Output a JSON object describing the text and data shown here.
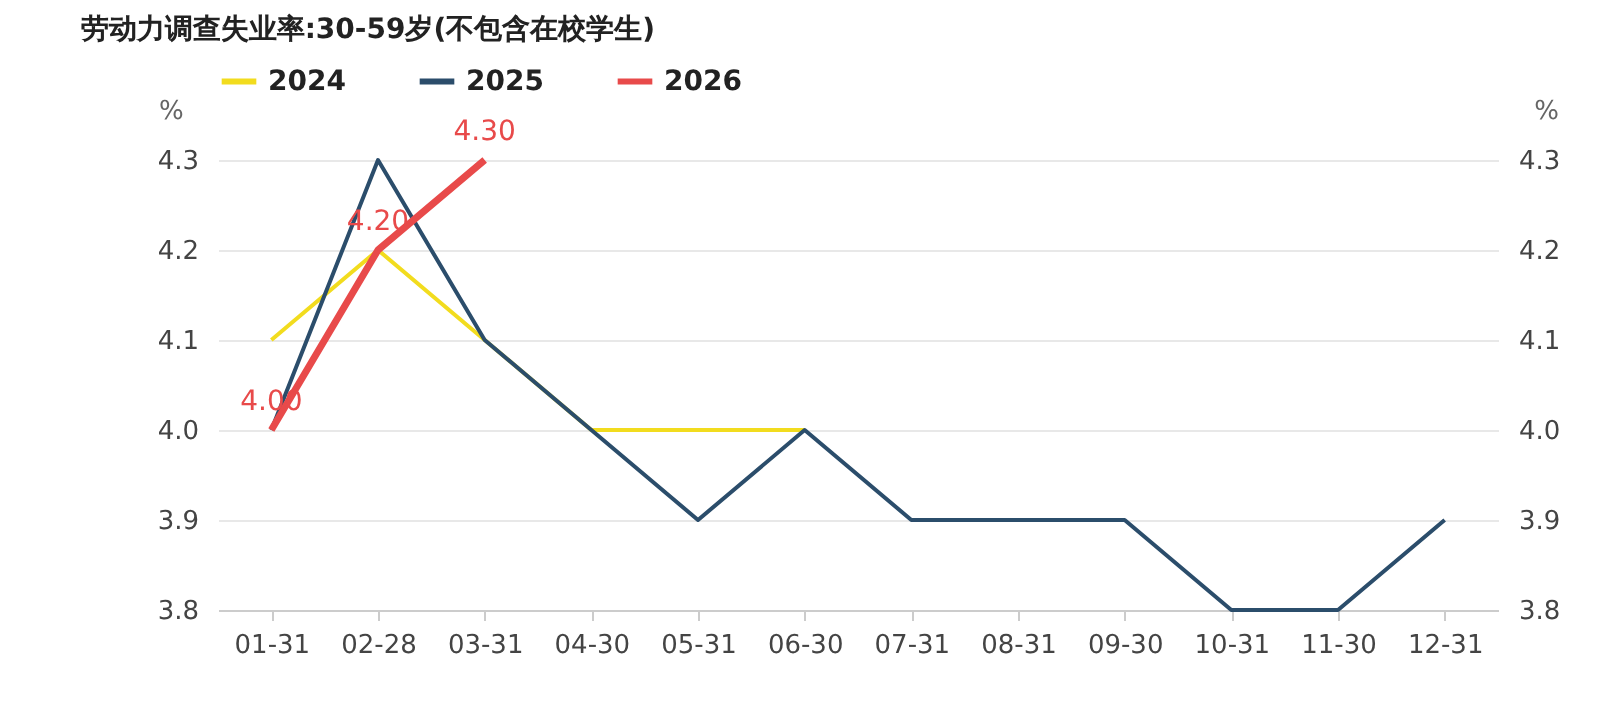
{
  "chart_data": {
    "type": "line",
    "title": "劳动力调查失业率:30-59岁(不包含在校学生)",
    "categories": [
      "01-31",
      "02-28",
      "03-31",
      "04-30",
      "05-31",
      "06-30",
      "07-31",
      "08-31",
      "09-30",
      "10-31",
      "11-30",
      "12-31"
    ],
    "series": [
      {
        "name": "2024",
        "color": "#f2dc1e",
        "values": [
          4.1,
          4.2,
          4.1,
          4.0,
          4.0,
          4.0,
          null,
          null,
          null,
          null,
          null,
          null
        ]
      },
      {
        "name": "2025",
        "color": "#2b4d6b",
        "values": [
          4.0,
          4.3,
          4.1,
          4.0,
          3.9,
          4.0,
          3.9,
          3.9,
          3.9,
          3.8,
          3.8,
          3.9
        ]
      },
      {
        "name": "2026",
        "color": "#e84a4a",
        "values": [
          4.0,
          4.2,
          4.3,
          null,
          null,
          null,
          null,
          null,
          null,
          null,
          null,
          null
        ],
        "value_labels": [
          "4.00",
          "4.20",
          "4.30",
          null,
          null,
          null,
          null,
          null,
          null,
          null,
          null,
          null
        ]
      }
    ],
    "ylabel": "%",
    "y2label": "%",
    "ylim": [
      3.8,
      4.3
    ],
    "yticks": [
      3.8,
      3.9,
      {
        "value": 4,
        "label": "4.0"
      },
      4.1,
      4.2,
      4.3
    ],
    "y2lim": [
      3.8,
      4.3
    ],
    "y2ticks": [
      3.8,
      3.9,
      {
        "value": 4,
        "label": "4.0"
      },
      4.1,
      4.2,
      4.3
    ],
    "grid": "y",
    "legend": "top left",
    "marker": "none",
    "line_style": "solid"
  }
}
